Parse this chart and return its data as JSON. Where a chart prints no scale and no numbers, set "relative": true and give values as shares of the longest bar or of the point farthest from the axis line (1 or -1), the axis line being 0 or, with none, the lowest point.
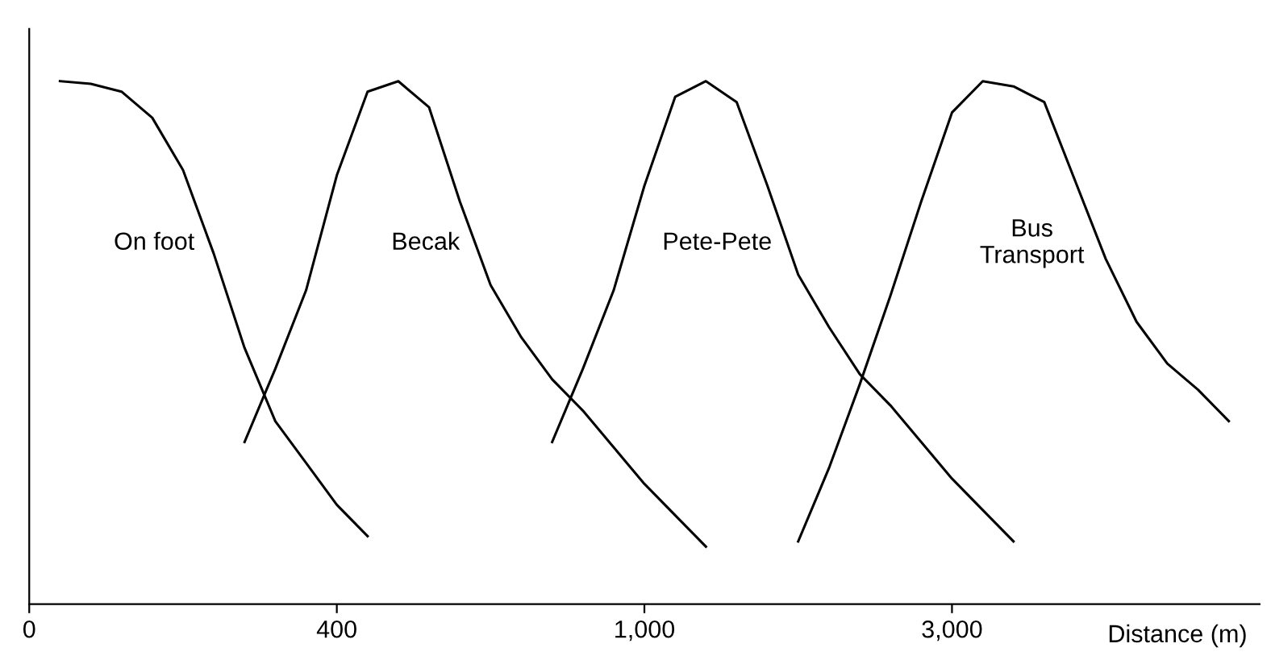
{
  "chart_data": {
    "type": "line",
    "relative": true,
    "xlabel": "Distance (m)",
    "categories": [
      "0",
      null,
      null,
      null,
      null,
      null,
      null,
      null,
      null,
      null,
      "400",
      null,
      null,
      null,
      null,
      null,
      null,
      null,
      null,
      null,
      "1,000",
      null,
      null,
      null,
      null,
      null,
      null,
      null,
      null,
      null,
      "3,000",
      null,
      null,
      null,
      null,
      null,
      null,
      null,
      null,
      null,
      null
    ],
    "grid": false,
    "legend": false,
    "marker": "none",
    "line_style": "solid",
    "series": [
      {
        "name": "On foot",
        "color": "#000000",
        "values": [
          null,
          1.0,
          0.995,
          0.98,
          0.93,
          0.83,
          0.67,
          0.49,
          0.35,
          0.27,
          0.19,
          0.13,
          null,
          null,
          null,
          null,
          null,
          null,
          null,
          null,
          null,
          null,
          null,
          null,
          null,
          null,
          null,
          null,
          null,
          null,
          null,
          null,
          null,
          null,
          null,
          null,
          null,
          null,
          null,
          null,
          null
        ]
      },
      {
        "name": "Becak",
        "color": "#000000",
        "values": [
          null,
          null,
          null,
          null,
          null,
          null,
          null,
          0.31,
          0.45,
          0.6,
          0.82,
          0.98,
          1.0,
          0.95,
          0.77,
          0.61,
          0.51,
          0.43,
          0.37,
          0.3,
          0.23,
          0.17,
          0.11,
          null,
          null,
          null,
          null,
          null,
          null,
          null,
          null,
          null,
          null,
          null,
          null,
          null,
          null,
          null,
          null,
          null,
          null
        ]
      },
      {
        "name": "Pete-Pete",
        "color": "#000000",
        "values": [
          null,
          null,
          null,
          null,
          null,
          null,
          null,
          null,
          null,
          null,
          null,
          null,
          null,
          null,
          null,
          null,
          null,
          0.31,
          0.45,
          0.6,
          0.8,
          0.97,
          1.0,
          0.96,
          0.8,
          0.63,
          0.53,
          0.44,
          0.38,
          0.31,
          0.24,
          0.18,
          0.12,
          null,
          null,
          null,
          null,
          null,
          null,
          null,
          null
        ]
      },
      {
        "name": "Bus Transport",
        "color": "#000000",
        "values": [
          null,
          null,
          null,
          null,
          null,
          null,
          null,
          null,
          null,
          null,
          null,
          null,
          null,
          null,
          null,
          null,
          null,
          null,
          null,
          null,
          null,
          null,
          null,
          null,
          null,
          0.12,
          0.26,
          0.42,
          0.59,
          0.77,
          0.94,
          1.0,
          0.99,
          0.96,
          0.81,
          0.66,
          0.54,
          0.46,
          0.41,
          0.35,
          null
        ]
      }
    ]
  }
}
